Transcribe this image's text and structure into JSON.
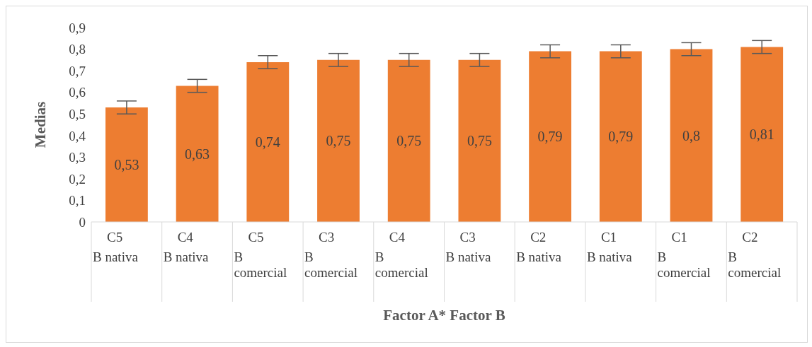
{
  "chart_data": {
    "type": "bar",
    "xlabel": "Factor A* Factor B",
    "ylabel": "Medias",
    "categories": [
      "C5\nB nativa",
      "C4\nB nativa",
      "C5\nB comercial",
      "C3\nB comercial",
      "C4\nB comercial",
      "C3\nB nativa",
      "C2\nB nativa",
      "C1\nB nativa",
      "C1\nB comercial",
      "C2\nB comercial"
    ],
    "values": [
      0.53,
      0.63,
      0.74,
      0.75,
      0.75,
      0.75,
      0.79,
      0.79,
      0.8,
      0.81
    ],
    "value_labels": [
      "0,53",
      "0,63",
      "0,74",
      "0,75",
      "0,75",
      "0,75",
      "0,79",
      "0,79",
      "0,8",
      "0,81"
    ],
    "errors": [
      0.03,
      0.03,
      0.03,
      0.03,
      0.03,
      0.03,
      0.03,
      0.03,
      0.03,
      0.03
    ],
    "color": "#ed7d31",
    "ylim": [
      0,
      0.9
    ],
    "yticks": [
      0,
      {
        "value": 0.1,
        "label": "0,1"
      },
      {
        "value": 0.2,
        "label": "0,2"
      },
      {
        "value": 0.3,
        "label": "0,3"
      },
      {
        "value": 0.4,
        "label": "0,4"
      },
      {
        "value": 0.5,
        "label": "0,5"
      },
      {
        "value": 0.6,
        "label": "0,6"
      },
      {
        "value": 0.7,
        "label": "0,7"
      },
      {
        "value": 0.8,
        "label": "0,8"
      },
      {
        "value": 0.9,
        "label": "0,9"
      }
    ],
    "grid": false
  }
}
